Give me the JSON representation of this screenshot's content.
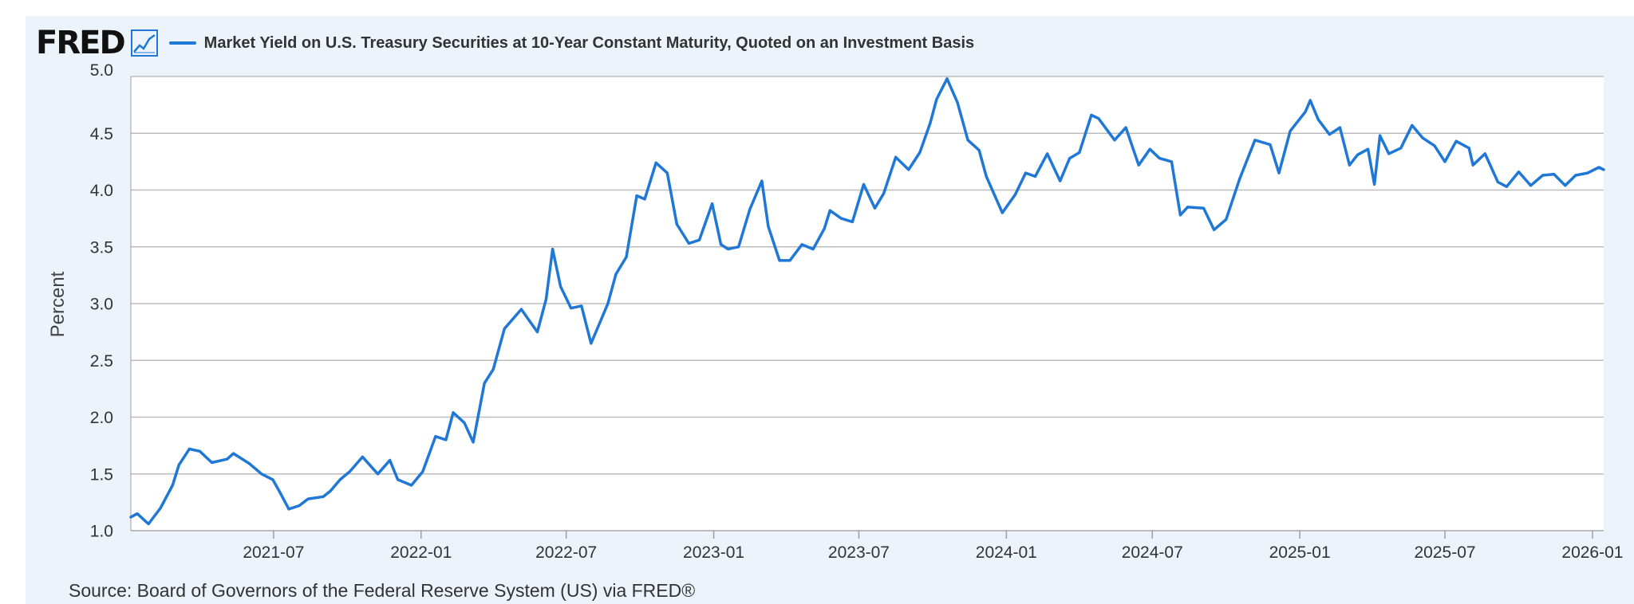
{
  "header": {
    "logo_text": "FRED",
    "series_title": "Market Yield on U.S. Treasury Securities at 10-Year Constant Maturity, Quoted on an Investment Basis",
    "icon": "line-graph-icon"
  },
  "footer": {
    "source": "Source: Board of Governors of the Federal Reserve System (US) via FRED®"
  },
  "colors": {
    "line": "#1f77d6",
    "panel_bg": "#ecf3fb",
    "grid": "#bdbdbd"
  },
  "chart_data": {
    "type": "line",
    "title": "Market Yield on U.S. Treasury Securities at 10-Year Constant Maturity, Quoted on an Investment Basis",
    "ylabel": "Percent",
    "xlabel": "",
    "ylim": [
      1.0,
      5.0
    ],
    "xlim": [
      "2021-01-04",
      "2026-01-15"
    ],
    "y_ticks": [
      "1.0",
      "1.5",
      "2.0",
      "2.5",
      "3.0",
      "3.5",
      "4.0",
      "4.5",
      "5.0"
    ],
    "x_ticks": [
      "2021-07",
      "2022-01",
      "2022-07",
      "2023-01",
      "2023-07",
      "2024-01",
      "2024-07",
      "2025-01",
      "2025-07",
      "2026-01"
    ],
    "grid": true,
    "legend": "top-left",
    "series": [
      {
        "name": "Market Yield on U.S. Treasury Securities at 10-Year Constant Maturity, Quoted on an Investment Basis",
        "x": [
          "2021-01-04",
          "2021-01-12",
          "2021-01-26",
          "2021-02-10",
          "2021-02-25",
          "2021-03-05",
          "2021-03-18",
          "2021-03-31",
          "2021-04-15",
          "2021-05-04",
          "2021-05-12",
          "2021-06-01",
          "2021-06-16",
          "2021-06-30",
          "2021-07-08",
          "2021-07-20",
          "2021-08-02",
          "2021-08-13",
          "2021-09-01",
          "2021-09-10",
          "2021-09-22",
          "2021-10-04",
          "2021-10-20",
          "2021-11-08",
          "2021-11-23",
          "2021-12-03",
          "2021-12-20",
          "2022-01-03",
          "2022-01-19",
          "2022-02-01",
          "2022-02-10",
          "2022-02-24",
          "2022-03-07",
          "2022-03-21",
          "2022-04-01",
          "2022-04-15",
          "2022-05-06",
          "2022-05-16",
          "2022-05-26",
          "2022-06-06",
          "2022-06-14",
          "2022-06-24",
          "2022-07-07",
          "2022-07-20",
          "2022-08-01",
          "2022-08-10",
          "2022-08-22",
          "2022-09-01",
          "2022-09-14",
          "2022-09-27",
          "2022-10-07",
          "2022-10-21",
          "2022-11-04",
          "2022-11-16",
          "2022-12-01",
          "2022-12-14",
          "2022-12-30",
          "2023-01-10",
          "2023-01-19",
          "2023-02-01",
          "2023-02-15",
          "2023-03-02",
          "2023-03-10",
          "2023-03-24",
          "2023-04-06",
          "2023-04-21",
          "2023-05-05",
          "2023-05-19",
          "2023-05-26",
          "2023-06-09",
          "2023-06-23",
          "2023-07-07",
          "2023-07-21",
          "2023-08-01",
          "2023-08-16",
          "2023-09-01",
          "2023-09-15",
          "2023-09-28",
          "2023-10-06",
          "2023-10-19",
          "2023-11-01",
          "2023-11-14",
          "2023-11-28",
          "2023-12-07",
          "2023-12-27",
          "2024-01-12",
          "2024-01-25",
          "2024-02-06",
          "2024-02-21",
          "2024-03-08",
          "2024-03-20",
          "2024-04-01",
          "2024-04-16",
          "2024-04-25",
          "2024-05-15",
          "2024-05-29",
          "2024-06-14",
          "2024-06-28",
          "2024-07-10",
          "2024-07-25",
          "2024-08-05",
          "2024-08-14",
          "2024-09-03",
          "2024-09-16",
          "2024-10-01",
          "2024-10-18",
          "2024-11-06",
          "2024-11-25",
          "2024-12-06",
          "2024-12-20",
          "2025-01-08",
          "2025-01-14",
          "2025-01-24",
          "2025-02-07",
          "2025-02-20",
          "2025-03-04",
          "2025-03-14",
          "2025-03-27",
          "2025-04-04",
          "2025-04-11",
          "2025-04-22",
          "2025-05-07",
          "2025-05-21",
          "2025-06-03",
          "2025-06-18",
          "2025-07-01",
          "2025-07-15",
          "2025-07-31",
          "2025-08-05",
          "2025-08-20",
          "2025-09-05",
          "2025-09-16",
          "2025-10-01",
          "2025-10-16",
          "2025-10-31",
          "2025-11-14",
          "2025-11-28",
          "2025-12-11",
          "2025-12-26",
          "2026-01-09",
          "2026-01-15"
        ],
        "values": [
          1.12,
          1.15,
          1.06,
          1.2,
          1.4,
          1.58,
          1.72,
          1.7,
          1.6,
          1.63,
          1.68,
          1.59,
          1.5,
          1.45,
          1.35,
          1.19,
          1.22,
          1.28,
          1.3,
          1.35,
          1.45,
          1.52,
          1.65,
          1.5,
          1.62,
          1.45,
          1.4,
          1.52,
          1.83,
          1.8,
          2.04,
          1.95,
          1.78,
          2.3,
          2.42,
          2.78,
          2.95,
          2.85,
          2.75,
          3.04,
          3.48,
          3.15,
          2.96,
          2.98,
          2.65,
          2.8,
          3.0,
          3.26,
          3.41,
          3.95,
          3.92,
          4.24,
          4.15,
          3.7,
          3.53,
          3.56,
          3.88,
          3.52,
          3.48,
          3.5,
          3.83,
          4.08,
          3.68,
          3.38,
          3.38,
          3.52,
          3.48,
          3.66,
          3.82,
          3.75,
          3.72,
          4.05,
          3.84,
          3.97,
          4.29,
          4.18,
          4.33,
          4.59,
          4.8,
          4.98,
          4.77,
          4.44,
          4.35,
          4.12,
          3.8,
          3.96,
          4.15,
          4.12,
          4.32,
          4.08,
          4.28,
          4.33,
          4.66,
          4.63,
          4.44,
          4.55,
          4.22,
          4.36,
          4.28,
          4.25,
          3.78,
          3.85,
          3.84,
          3.65,
          3.74,
          4.1,
          4.44,
          4.4,
          4.15,
          4.52,
          4.69,
          4.79,
          4.62,
          4.49,
          4.55,
          4.22,
          4.31,
          4.36,
          4.05,
          4.48,
          4.32,
          4.37,
          4.57,
          4.46,
          4.39,
          4.25,
          4.43,
          4.37,
          4.22,
          4.32,
          4.07,
          4.03,
          4.16,
          4.04,
          4.13,
          4.14,
          4.04,
          4.13,
          4.15,
          4.2,
          4.18
        ]
      }
    ]
  }
}
